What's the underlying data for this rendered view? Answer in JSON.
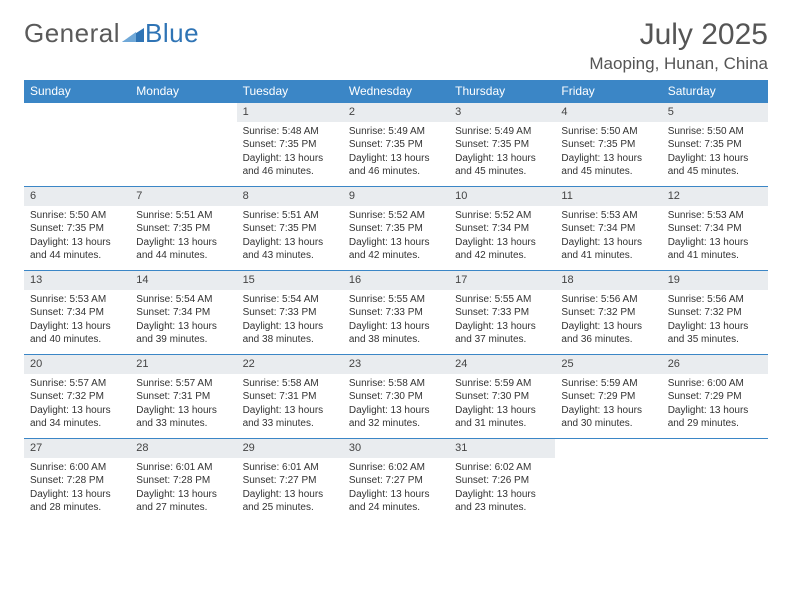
{
  "brand": {
    "part1": "General",
    "part2": "Blue"
  },
  "colors": {
    "header_bg": "#3b86c6",
    "header_text": "#ffffff",
    "daynum_bg": "#e9ecef",
    "row_divider": "#3b86c6",
    "text": "#333333",
    "title_text": "#555555",
    "logo_text": "#5a5a5a",
    "logo_accent": "#2f74b5"
  },
  "title": "July 2025",
  "location": "Maoping, Hunan, China",
  "weekdays": [
    "Sunday",
    "Monday",
    "Tuesday",
    "Wednesday",
    "Thursday",
    "Friday",
    "Saturday"
  ],
  "weeks": [
    [
      null,
      null,
      {
        "n": "1",
        "sr": "Sunrise: 5:48 AM",
        "ss": "Sunset: 7:35 PM",
        "d1": "Daylight: 13 hours",
        "d2": "and 46 minutes."
      },
      {
        "n": "2",
        "sr": "Sunrise: 5:49 AM",
        "ss": "Sunset: 7:35 PM",
        "d1": "Daylight: 13 hours",
        "d2": "and 46 minutes."
      },
      {
        "n": "3",
        "sr": "Sunrise: 5:49 AM",
        "ss": "Sunset: 7:35 PM",
        "d1": "Daylight: 13 hours",
        "d2": "and 45 minutes."
      },
      {
        "n": "4",
        "sr": "Sunrise: 5:50 AM",
        "ss": "Sunset: 7:35 PM",
        "d1": "Daylight: 13 hours",
        "d2": "and 45 minutes."
      },
      {
        "n": "5",
        "sr": "Sunrise: 5:50 AM",
        "ss": "Sunset: 7:35 PM",
        "d1": "Daylight: 13 hours",
        "d2": "and 45 minutes."
      }
    ],
    [
      {
        "n": "6",
        "sr": "Sunrise: 5:50 AM",
        "ss": "Sunset: 7:35 PM",
        "d1": "Daylight: 13 hours",
        "d2": "and 44 minutes."
      },
      {
        "n": "7",
        "sr": "Sunrise: 5:51 AM",
        "ss": "Sunset: 7:35 PM",
        "d1": "Daylight: 13 hours",
        "d2": "and 44 minutes."
      },
      {
        "n": "8",
        "sr": "Sunrise: 5:51 AM",
        "ss": "Sunset: 7:35 PM",
        "d1": "Daylight: 13 hours",
        "d2": "and 43 minutes."
      },
      {
        "n": "9",
        "sr": "Sunrise: 5:52 AM",
        "ss": "Sunset: 7:35 PM",
        "d1": "Daylight: 13 hours",
        "d2": "and 42 minutes."
      },
      {
        "n": "10",
        "sr": "Sunrise: 5:52 AM",
        "ss": "Sunset: 7:34 PM",
        "d1": "Daylight: 13 hours",
        "d2": "and 42 minutes."
      },
      {
        "n": "11",
        "sr": "Sunrise: 5:53 AM",
        "ss": "Sunset: 7:34 PM",
        "d1": "Daylight: 13 hours",
        "d2": "and 41 minutes."
      },
      {
        "n": "12",
        "sr": "Sunrise: 5:53 AM",
        "ss": "Sunset: 7:34 PM",
        "d1": "Daylight: 13 hours",
        "d2": "and 41 minutes."
      }
    ],
    [
      {
        "n": "13",
        "sr": "Sunrise: 5:53 AM",
        "ss": "Sunset: 7:34 PM",
        "d1": "Daylight: 13 hours",
        "d2": "and 40 minutes."
      },
      {
        "n": "14",
        "sr": "Sunrise: 5:54 AM",
        "ss": "Sunset: 7:34 PM",
        "d1": "Daylight: 13 hours",
        "d2": "and 39 minutes."
      },
      {
        "n": "15",
        "sr": "Sunrise: 5:54 AM",
        "ss": "Sunset: 7:33 PM",
        "d1": "Daylight: 13 hours",
        "d2": "and 38 minutes."
      },
      {
        "n": "16",
        "sr": "Sunrise: 5:55 AM",
        "ss": "Sunset: 7:33 PM",
        "d1": "Daylight: 13 hours",
        "d2": "and 38 minutes."
      },
      {
        "n": "17",
        "sr": "Sunrise: 5:55 AM",
        "ss": "Sunset: 7:33 PM",
        "d1": "Daylight: 13 hours",
        "d2": "and 37 minutes."
      },
      {
        "n": "18",
        "sr": "Sunrise: 5:56 AM",
        "ss": "Sunset: 7:32 PM",
        "d1": "Daylight: 13 hours",
        "d2": "and 36 minutes."
      },
      {
        "n": "19",
        "sr": "Sunrise: 5:56 AM",
        "ss": "Sunset: 7:32 PM",
        "d1": "Daylight: 13 hours",
        "d2": "and 35 minutes."
      }
    ],
    [
      {
        "n": "20",
        "sr": "Sunrise: 5:57 AM",
        "ss": "Sunset: 7:32 PM",
        "d1": "Daylight: 13 hours",
        "d2": "and 34 minutes."
      },
      {
        "n": "21",
        "sr": "Sunrise: 5:57 AM",
        "ss": "Sunset: 7:31 PM",
        "d1": "Daylight: 13 hours",
        "d2": "and 33 minutes."
      },
      {
        "n": "22",
        "sr": "Sunrise: 5:58 AM",
        "ss": "Sunset: 7:31 PM",
        "d1": "Daylight: 13 hours",
        "d2": "and 33 minutes."
      },
      {
        "n": "23",
        "sr": "Sunrise: 5:58 AM",
        "ss": "Sunset: 7:30 PM",
        "d1": "Daylight: 13 hours",
        "d2": "and 32 minutes."
      },
      {
        "n": "24",
        "sr": "Sunrise: 5:59 AM",
        "ss": "Sunset: 7:30 PM",
        "d1": "Daylight: 13 hours",
        "d2": "and 31 minutes."
      },
      {
        "n": "25",
        "sr": "Sunrise: 5:59 AM",
        "ss": "Sunset: 7:29 PM",
        "d1": "Daylight: 13 hours",
        "d2": "and 30 minutes."
      },
      {
        "n": "26",
        "sr": "Sunrise: 6:00 AM",
        "ss": "Sunset: 7:29 PM",
        "d1": "Daylight: 13 hours",
        "d2": "and 29 minutes."
      }
    ],
    [
      {
        "n": "27",
        "sr": "Sunrise: 6:00 AM",
        "ss": "Sunset: 7:28 PM",
        "d1": "Daylight: 13 hours",
        "d2": "and 28 minutes."
      },
      {
        "n": "28",
        "sr": "Sunrise: 6:01 AM",
        "ss": "Sunset: 7:28 PM",
        "d1": "Daylight: 13 hours",
        "d2": "and 27 minutes."
      },
      {
        "n": "29",
        "sr": "Sunrise: 6:01 AM",
        "ss": "Sunset: 7:27 PM",
        "d1": "Daylight: 13 hours",
        "d2": "and 25 minutes."
      },
      {
        "n": "30",
        "sr": "Sunrise: 6:02 AM",
        "ss": "Sunset: 7:27 PM",
        "d1": "Daylight: 13 hours",
        "d2": "and 24 minutes."
      },
      {
        "n": "31",
        "sr": "Sunrise: 6:02 AM",
        "ss": "Sunset: 7:26 PM",
        "d1": "Daylight: 13 hours",
        "d2": "and 23 minutes."
      },
      null,
      null
    ]
  ]
}
